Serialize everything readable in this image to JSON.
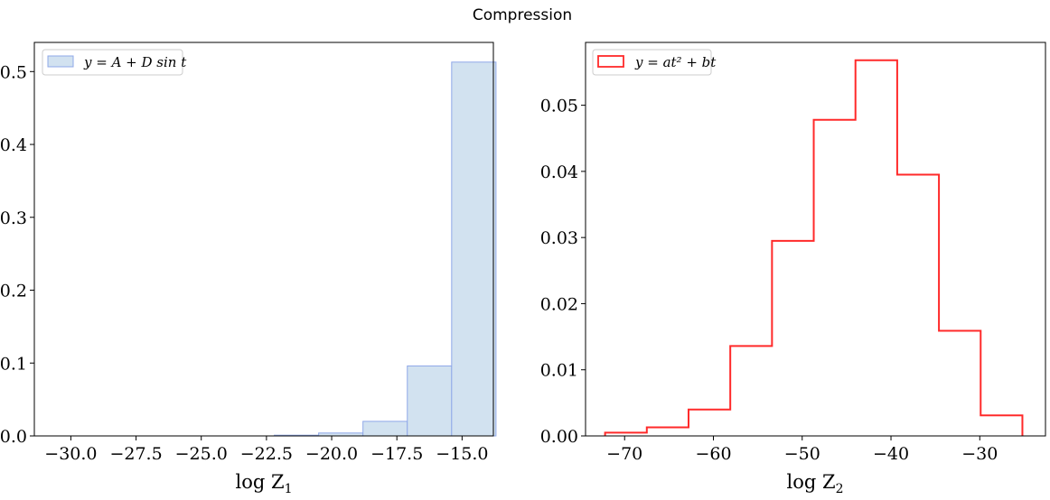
{
  "suptitle": "Compression",
  "chart_data": [
    {
      "type": "bar",
      "style": "filled histogram",
      "legend": {
        "label": "y = A + D sin t",
        "position": "upper left"
      },
      "xlabel_main": "log Z",
      "xlabel_sub": "1",
      "xlim": [
        -31.4,
        -13.8
      ],
      "ylim": [
        0,
        0.54
      ],
      "xticks": [
        -30.0,
        -27.5,
        -25.0,
        -22.5,
        -20.0,
        -17.5,
        -15.0
      ],
      "xtick_labels": [
        "−30.0",
        "−27.5",
        "−25.0",
        "−22.5",
        "−20.0",
        "−17.5",
        "−15.0"
      ],
      "yticks": [
        0.0,
        0.1,
        0.2,
        0.3,
        0.4,
        0.5
      ],
      "ytick_labels": [
        "0.0",
        "0.1",
        "0.2",
        "0.3",
        "0.4",
        "0.5"
      ],
      "bin_edges": [
        -30.7,
        -29.0,
        -27.3,
        -25.6,
        -23.9,
        -22.2,
        -20.5,
        -18.8,
        -17.1,
        -15.4,
        -13.7
      ],
      "values": [
        0.0,
        0.0,
        0.0,
        0.0,
        0.0,
        0.001,
        0.004,
        0.02,
        0.096,
        0.513
      ],
      "colors": {
        "fill": "#d2e2f0",
        "edge": "#8fa8e8"
      }
    },
    {
      "type": "bar",
      "style": "step histogram",
      "legend": {
        "label": "y = at² + bt",
        "position": "upper left"
      },
      "xlabel_main": "log Z",
      "xlabel_sub": "2",
      "xlim": [
        -74.4,
        -22.6
      ],
      "ylim": [
        0,
        0.0595
      ],
      "xticks": [
        -70,
        -60,
        -50,
        -40,
        -30
      ],
      "xtick_labels": [
        "−70",
        "−60",
        "−50",
        "−40",
        "−30"
      ],
      "yticks": [
        0.0,
        0.01,
        0.02,
        0.03,
        0.04,
        0.05
      ],
      "ytick_labels": [
        "0.00",
        "0.01",
        "0.02",
        "0.03",
        "0.04",
        "0.05"
      ],
      "bin_edges": [
        -72.2,
        -67.5,
        -62.8,
        -58.1,
        -53.4,
        -48.7,
        -44.0,
        -39.3,
        -34.6,
        -29.9,
        -25.2
      ],
      "values": [
        0.0005,
        0.0013,
        0.004,
        0.0136,
        0.0295,
        0.0478,
        0.0568,
        0.0395,
        0.0159,
        0.0031
      ],
      "colors": {
        "line": "#ff2a2a"
      }
    }
  ]
}
